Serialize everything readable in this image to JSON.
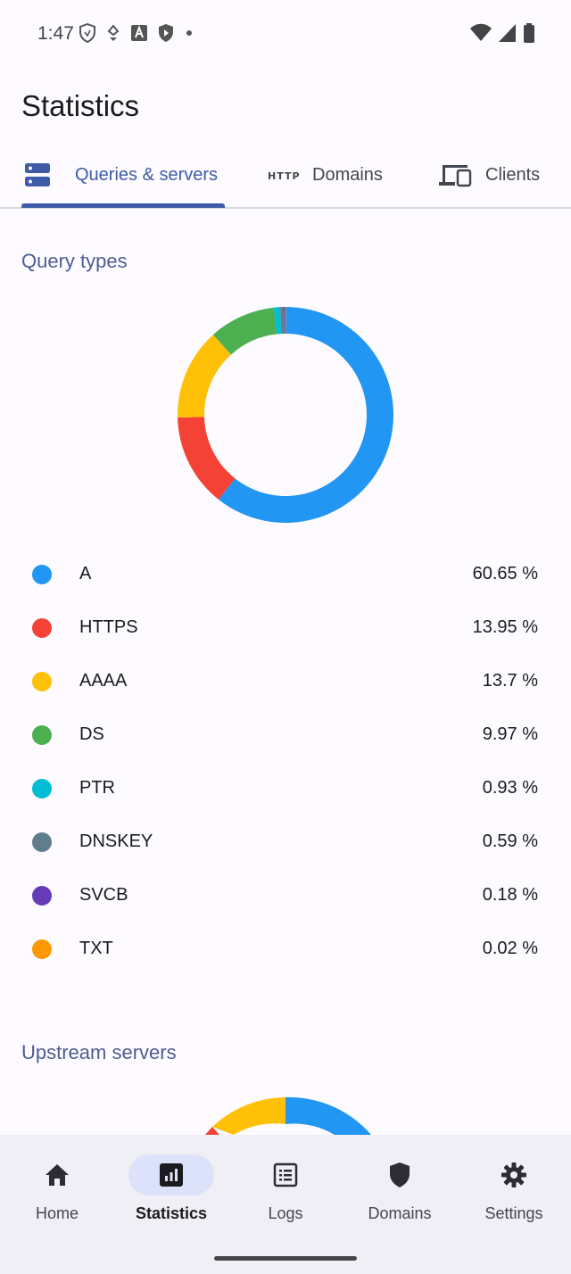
{
  "status_bar": {
    "time": "1:47",
    "left_icons": [
      "shield-icon",
      "location-icon",
      "font-a-icon",
      "play-shield-icon",
      "dot-icon"
    ],
    "right_icons": [
      "wifi-icon",
      "cell-signal-icon",
      "battery-icon"
    ]
  },
  "header": {
    "title": "Statistics"
  },
  "tabs": [
    {
      "label": "Queries & servers",
      "icon": "server-icon",
      "active": true
    },
    {
      "label": "Domains",
      "icon": "http-icon",
      "active": false
    },
    {
      "label": "Clients",
      "icon": "devices-icon",
      "active": false
    }
  ],
  "query_types": {
    "title": "Query types",
    "items": [
      {
        "label": "A",
        "value": "60.65 %",
        "percent": 60.65,
        "color": "#2196f3"
      },
      {
        "label": "HTTPS",
        "value": "13.95 %",
        "percent": 13.95,
        "color": "#f44336"
      },
      {
        "label": "AAAA",
        "value": "13.7 %",
        "percent": 13.7,
        "color": "#ffc107"
      },
      {
        "label": "DS",
        "value": "9.97 %",
        "percent": 9.97,
        "color": "#4caf50"
      },
      {
        "label": "PTR",
        "value": "0.93 %",
        "percent": 0.93,
        "color": "#00bcd4"
      },
      {
        "label": "DNSKEY",
        "value": "0.59 %",
        "percent": 0.59,
        "color": "#607d8b"
      },
      {
        "label": "SVCB",
        "value": "0.18 %",
        "percent": 0.18,
        "color": "#673ab7"
      },
      {
        "label": "TXT",
        "value": "0.02 %",
        "percent": 0.02,
        "color": "#ff9800"
      }
    ]
  },
  "upstream_servers": {
    "title": "Upstream servers",
    "visible_slices": [
      {
        "color": "#2196f3"
      },
      {
        "color": "#ffc107"
      },
      {
        "color": "#f44336"
      }
    ]
  },
  "bottom_nav": [
    {
      "label": "Home",
      "icon": "home-icon",
      "active": false
    },
    {
      "label": "Statistics",
      "icon": "statistics-icon",
      "active": true
    },
    {
      "label": "Logs",
      "icon": "logs-icon",
      "active": false
    },
    {
      "label": "Domains",
      "icon": "shield-icon",
      "active": false
    },
    {
      "label": "Settings",
      "icon": "gear-icon",
      "active": false
    }
  ],
  "colors": {
    "accent": "#3d5ba9",
    "section_title": "#4a5d92",
    "nav_active_pill": "#dce2f9"
  }
}
